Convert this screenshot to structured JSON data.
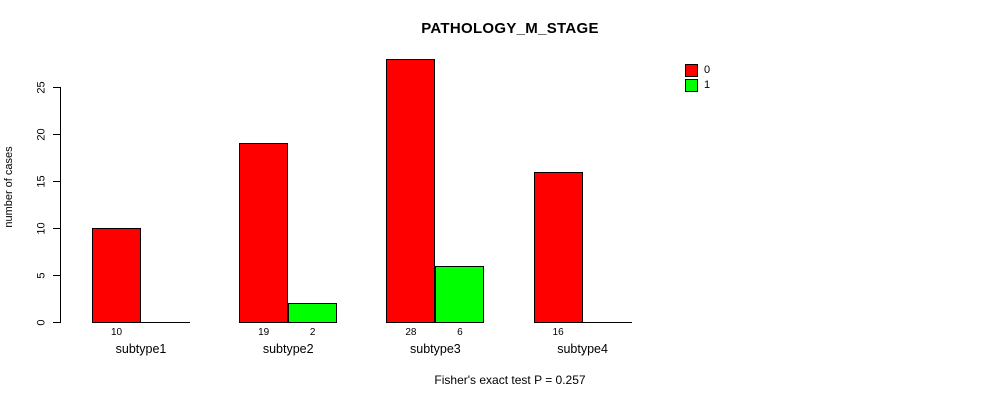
{
  "chart_data": {
    "type": "bar",
    "title": "PATHOLOGY_M_STAGE",
    "ylabel": "number of cases",
    "xlabel": "",
    "caption": "Fisher's exact test P = 0.257",
    "categories": [
      "subtype1",
      "subtype2",
      "subtype3",
      "subtype4"
    ],
    "series": [
      {
        "name": "0",
        "color": "#ff0000",
        "values": [
          10,
          19,
          28,
          16
        ],
        "bar_labels": [
          "10",
          "19",
          "28",
          "16"
        ]
      },
      {
        "name": "1",
        "color": "#00ff00",
        "values": [
          0,
          2,
          6,
          0
        ],
        "bar_labels": [
          "",
          "2",
          "6",
          ""
        ]
      }
    ],
    "y_ticks": [
      0,
      5,
      10,
      15,
      20,
      25
    ],
    "ylim": [
      0,
      28
    ],
    "grid": false,
    "legend": {
      "position": "top-right",
      "items": [
        {
          "label": "0",
          "color": "#ff0000"
        },
        {
          "label": "1",
          "color": "#00ff00"
        }
      ]
    }
  }
}
